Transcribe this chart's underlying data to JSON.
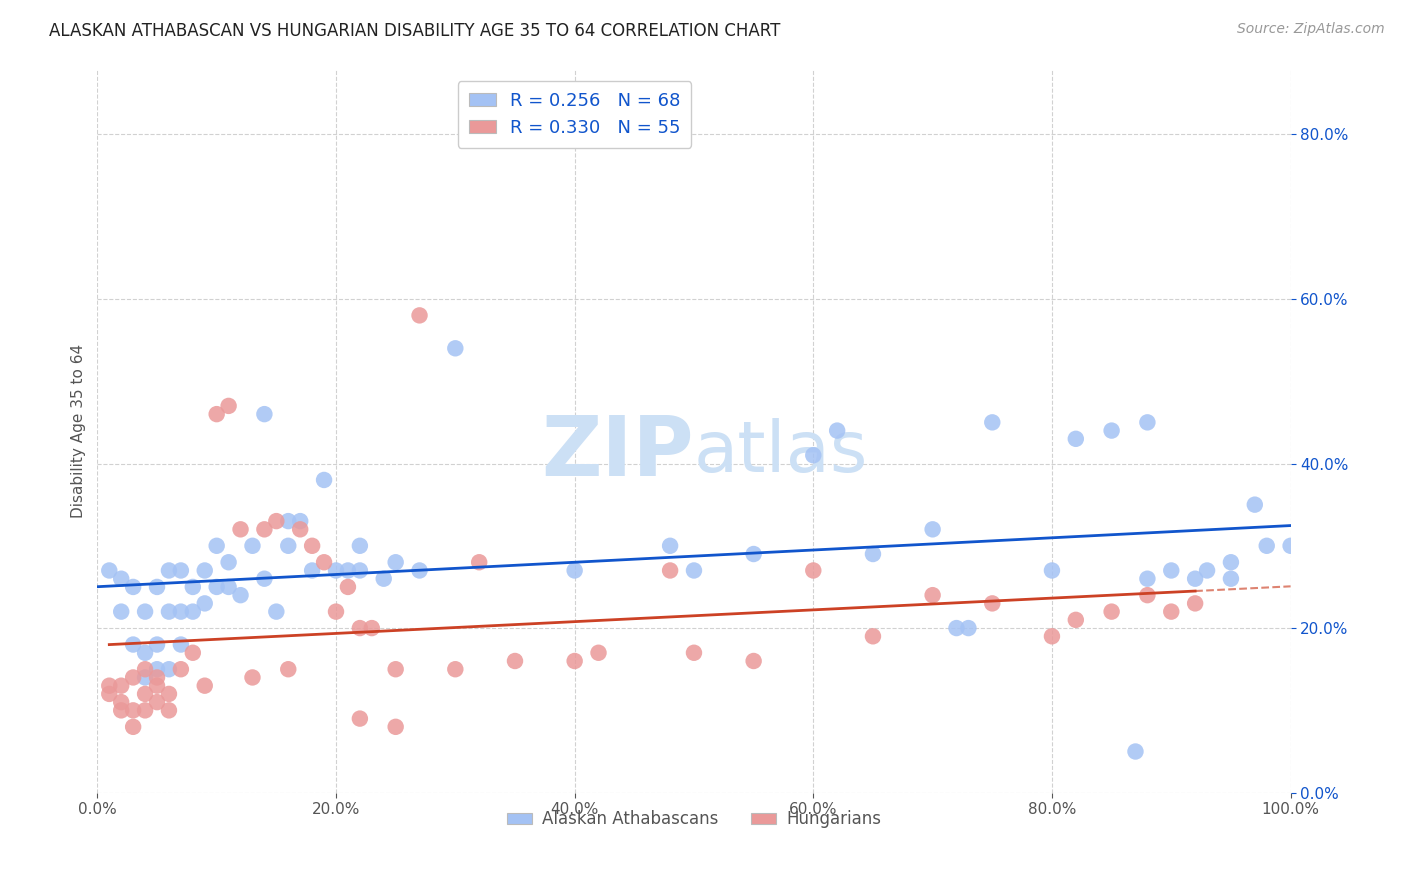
{
  "title": "ALASKAN ATHABASCAN VS HUNGARIAN DISABILITY AGE 35 TO 64 CORRELATION CHART",
  "source": "Source: ZipAtlas.com",
  "ylabel": "Disability Age 35 to 64",
  "blue_color": "#a4c2f4",
  "pink_color": "#ea9999",
  "blue_line_color": "#1155cc",
  "pink_line_color": "#cc4125",
  "pink_dash_color": "#cc9999",
  "legend_r_blue": "R = 0.256",
  "legend_n_blue": "N = 68",
  "legend_r_pink": "R = 0.330",
  "legend_n_pink": "N = 55",
  "legend_label_blue": "Alaskan Athabascans",
  "legend_label_pink": "Hungarians",
  "blue_x": [
    0.01,
    0.02,
    0.02,
    0.03,
    0.03,
    0.04,
    0.04,
    0.04,
    0.05,
    0.05,
    0.05,
    0.06,
    0.06,
    0.06,
    0.07,
    0.07,
    0.07,
    0.08,
    0.08,
    0.09,
    0.09,
    0.1,
    0.1,
    0.11,
    0.11,
    0.12,
    0.13,
    0.14,
    0.14,
    0.15,
    0.16,
    0.16,
    0.17,
    0.18,
    0.19,
    0.2,
    0.21,
    0.22,
    0.22,
    0.24,
    0.25,
    0.27,
    0.3,
    0.4,
    0.48,
    0.5,
    0.55,
    0.6,
    0.62,
    0.65,
    0.7,
    0.72,
    0.75,
    0.8,
    0.82,
    0.85,
    0.88,
    0.88,
    0.9,
    0.92,
    0.93,
    0.95,
    0.97,
    0.98,
    1.0,
    0.95,
    0.73,
    0.87
  ],
  "blue_y": [
    0.27,
    0.22,
    0.26,
    0.18,
    0.25,
    0.14,
    0.17,
    0.22,
    0.15,
    0.18,
    0.25,
    0.15,
    0.22,
    0.27,
    0.18,
    0.22,
    0.27,
    0.22,
    0.25,
    0.23,
    0.27,
    0.25,
    0.3,
    0.25,
    0.28,
    0.24,
    0.3,
    0.26,
    0.46,
    0.22,
    0.3,
    0.33,
    0.33,
    0.27,
    0.38,
    0.27,
    0.27,
    0.27,
    0.3,
    0.26,
    0.28,
    0.27,
    0.54,
    0.27,
    0.3,
    0.27,
    0.29,
    0.41,
    0.44,
    0.29,
    0.32,
    0.2,
    0.45,
    0.27,
    0.43,
    0.44,
    0.26,
    0.45,
    0.27,
    0.26,
    0.27,
    0.28,
    0.35,
    0.3,
    0.3,
    0.26,
    0.2,
    0.05
  ],
  "pink_x": [
    0.01,
    0.01,
    0.02,
    0.02,
    0.02,
    0.03,
    0.03,
    0.03,
    0.04,
    0.04,
    0.04,
    0.05,
    0.05,
    0.05,
    0.06,
    0.06,
    0.07,
    0.08,
    0.09,
    0.1,
    0.11,
    0.12,
    0.13,
    0.14,
    0.15,
    0.16,
    0.17,
    0.18,
    0.19,
    0.2,
    0.21,
    0.22,
    0.23,
    0.25,
    0.27,
    0.3,
    0.32,
    0.35,
    0.4,
    0.42,
    0.48,
    0.5,
    0.55,
    0.6,
    0.65,
    0.7,
    0.75,
    0.8,
    0.82,
    0.85,
    0.88,
    0.9,
    0.92,
    0.22,
    0.25
  ],
  "pink_y": [
    0.12,
    0.13,
    0.1,
    0.11,
    0.13,
    0.08,
    0.1,
    0.14,
    0.1,
    0.12,
    0.15,
    0.13,
    0.11,
    0.14,
    0.1,
    0.12,
    0.15,
    0.17,
    0.13,
    0.46,
    0.47,
    0.32,
    0.14,
    0.32,
    0.33,
    0.15,
    0.32,
    0.3,
    0.28,
    0.22,
    0.25,
    0.2,
    0.2,
    0.15,
    0.58,
    0.15,
    0.28,
    0.16,
    0.16,
    0.17,
    0.27,
    0.17,
    0.16,
    0.27,
    0.19,
    0.24,
    0.23,
    0.19,
    0.21,
    0.22,
    0.24,
    0.22,
    0.23,
    0.09,
    0.08
  ],
  "background_color": "#ffffff",
  "grid_color": "#cccccc",
  "title_fontsize": 12,
  "source_fontsize": 10,
  "axis_label_fontsize": 11,
  "tick_fontsize": 11,
  "watermark_fontsize": 60,
  "watermark_color": "#cce0f5",
  "xlim": [
    0.0,
    1.0
  ],
  "ylim": [
    0.0,
    0.88
  ]
}
